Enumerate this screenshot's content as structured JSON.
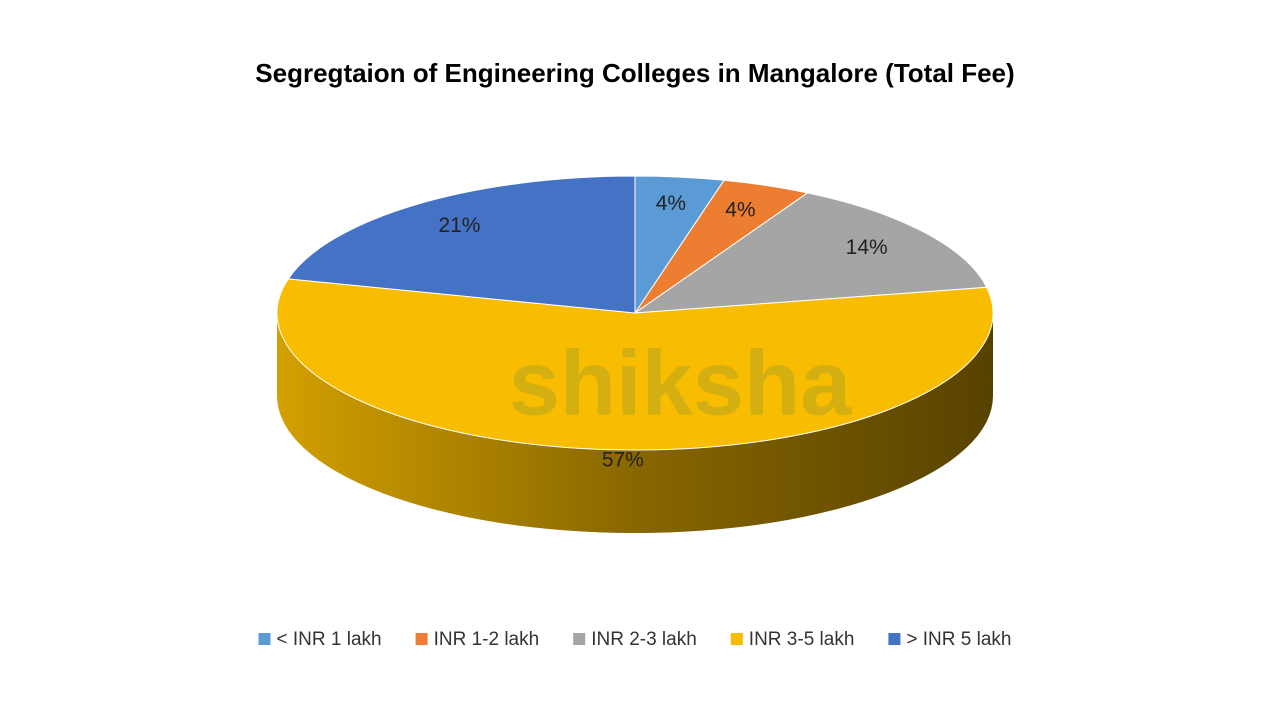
{
  "chart_data": {
    "type": "pie3d",
    "title": "Segregtaion of Engineering Colleges in Mangalore (Total Fee)",
    "categories": [
      "< INR 1 lakh",
      "INR 1-2 lakh",
      "INR 2-3 lakh",
      "INR 3-5 lakh",
      "> INR 5 lakh"
    ],
    "values": [
      4,
      4,
      14,
      57,
      21
    ],
    "value_labels": [
      "4%",
      "4%",
      "14%",
      "57%",
      "21%"
    ],
    "colors": [
      "#5b9bd5",
      "#ed7d31",
      "#a5a5a5",
      "#f8bc00",
      "#4472c4"
    ],
    "legend": "bottom",
    "watermark": "shiksha"
  }
}
